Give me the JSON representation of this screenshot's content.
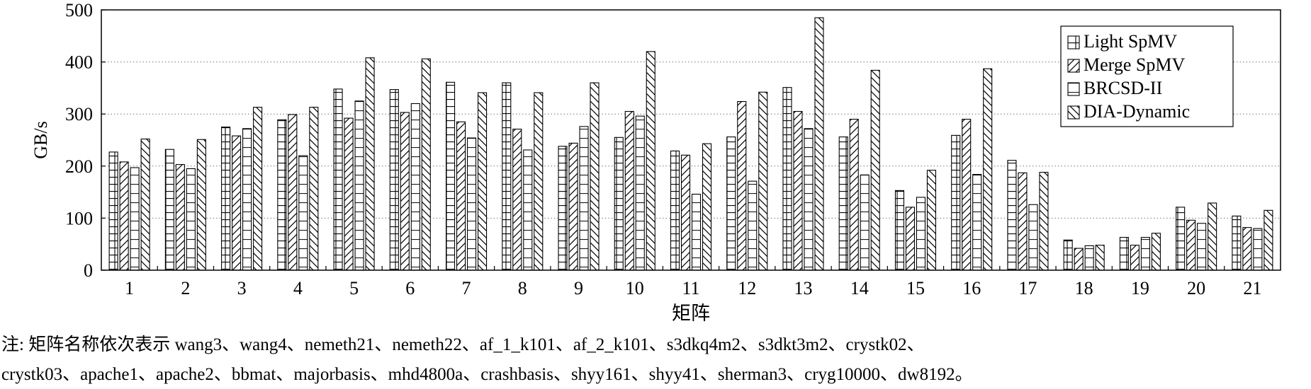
{
  "chart_data": {
    "type": "bar",
    "title": "",
    "xlabel": "矩阵",
    "ylabel": "GB/s",
    "ylim": [
      0,
      500
    ],
    "yticks": [
      0,
      100,
      200,
      300,
      400,
      500
    ],
    "grid": true,
    "legend_position": "top-right",
    "categories": [
      "1",
      "2",
      "3",
      "4",
      "5",
      "6",
      "7",
      "8",
      "9",
      "10",
      "11",
      "12",
      "13",
      "14",
      "15",
      "16",
      "17",
      "18",
      "19",
      "20",
      "21"
    ],
    "series": [
      {
        "name": "Light SpMV",
        "pattern": "grid-hatch",
        "values": [
          227,
          232,
          275,
          289,
          348,
          347,
          361,
          360,
          238,
          255,
          229,
          256,
          351,
          256,
          153,
          259,
          211,
          58,
          63,
          121,
          104
        ]
      },
      {
        "name": "Merge SpMV",
        "pattern": "diagonal-hatch",
        "values": [
          208,
          203,
          258,
          299,
          292,
          303,
          285,
          271,
          244,
          305,
          221,
          324,
          305,
          290,
          121,
          290,
          187,
          42,
          48,
          96,
          82
        ]
      },
      {
        "name": "BRCSD-II",
        "pattern": "horizontal-hatch",
        "values": [
          197,
          195,
          272,
          220,
          325,
          320,
          254,
          231,
          276,
          296,
          146,
          171,
          272,
          183,
          140,
          184,
          126,
          47,
          63,
          90,
          80
        ]
      },
      {
        "name": "DIA-Dynamic",
        "pattern": "backslash-hatch",
        "values": [
          252,
          251,
          313,
          313,
          408,
          406,
          341,
          341,
          360,
          420,
          243,
          342,
          485,
          384,
          192,
          387,
          188,
          48,
          71,
          129,
          115
        ]
      }
    ]
  },
  "note": {
    "line1": "注: 矩阵名称依次表示 wang3、wang4、nemeth21、nemeth22、af_1_k101、af_2_k101、s3dkq4m2、s3dkt3m2、crystk02、",
    "line2": "crystk03、apache1、apache2、bbmat、majorbasis、mhd4800a、crashbasis、shyy161、shyy41、sherman3、cryg10000、dw8192。"
  }
}
